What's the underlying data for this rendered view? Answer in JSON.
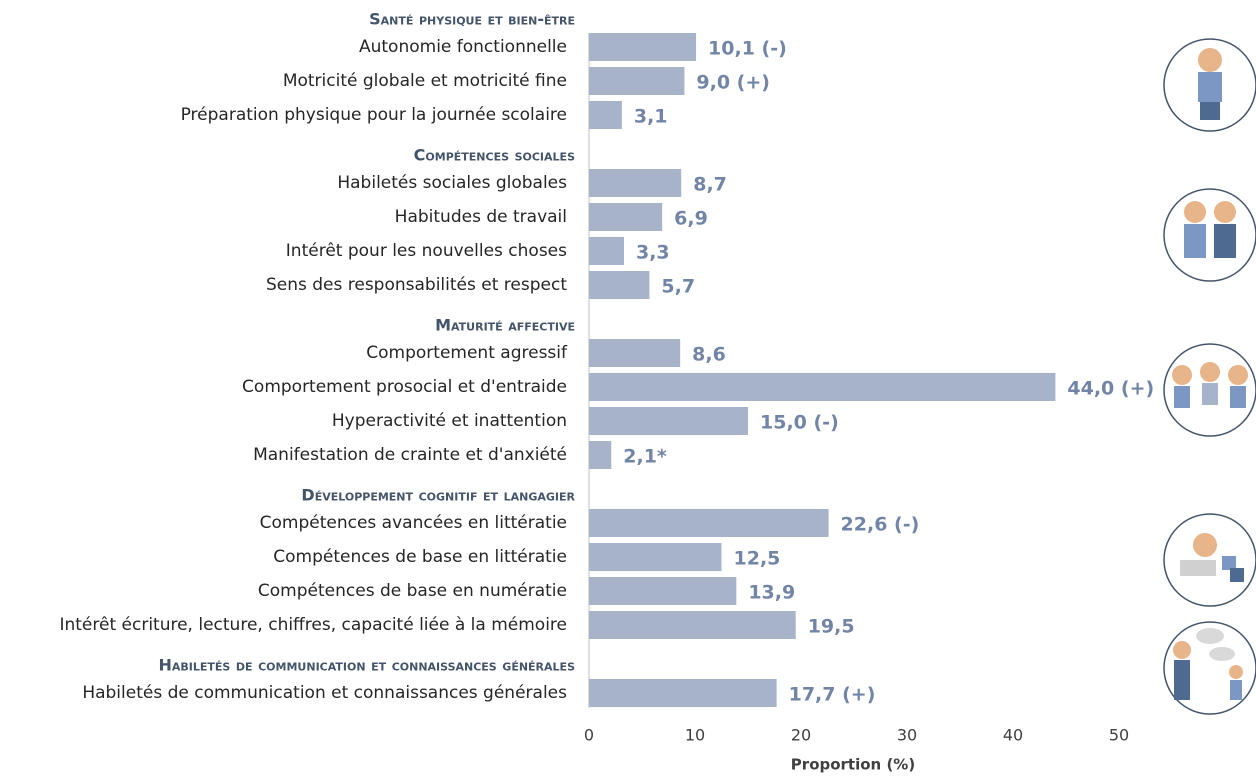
{
  "chart_data": {
    "type": "bar",
    "orientation": "horizontal",
    "color": "#a6b3c9",
    "x_label": "Proportion (%)",
    "xlim": [
      0,
      50
    ],
    "xticks": [
      0,
      10,
      20,
      30,
      40,
      50
    ],
    "grid": false,
    "groups": [
      {
        "title": "Santé physique et bien-être",
        "categories": [
          "Autonomie fonctionnelle",
          "Motricité globale et motricité fine",
          "Préparation physique pour la journée scolaire"
        ],
        "values": [
          10.1,
          9.0,
          3.1
        ],
        "value_labels": [
          "10,1 (-)",
          "9,0 (+)",
          "3,1"
        ]
      },
      {
        "title": "Compétences sociales",
        "categories": [
          "Habiletés sociales globales",
          "Habitudes de travail",
          "Intérêt pour les nouvelles choses",
          "Sens des responsabilités et respect"
        ],
        "values": [
          8.7,
          6.9,
          3.3,
          5.7
        ],
        "value_labels": [
          "8,7",
          "6,9",
          "3,3",
          "5,7"
        ]
      },
      {
        "title": "Maturité affective",
        "categories": [
          "Comportement agressif",
          "Comportement prosocial et d'entraide",
          "Hyperactivité et inattention",
          "Manifestation de crainte et d'anxiété"
        ],
        "values": [
          8.6,
          44.0,
          15.0,
          2.1
        ],
        "value_labels": [
          "8,6",
          "44,0 (+)",
          "15,0 (-)",
          "2,1*"
        ]
      },
      {
        "title": "Développement cognitif et langagier",
        "categories": [
          "Compétences avancées en littératie",
          "Compétences de base en littératie",
          "Compétences de base en numératie",
          "Intérêt écriture, lecture, chiffres, capacité liée à la mémoire"
        ],
        "values": [
          22.6,
          12.5,
          13.9,
          19.5
        ],
        "value_labels": [
          "22,6 (-)",
          "12,5",
          "13,9",
          "19,5"
        ]
      },
      {
        "title": "Habiletés de communication et connaissances générales",
        "categories": [
          "Habiletés de communication et connaissances générales"
        ],
        "values": [
          17.7
        ],
        "value_labels": [
          "17,7 (+)"
        ]
      }
    ]
  }
}
